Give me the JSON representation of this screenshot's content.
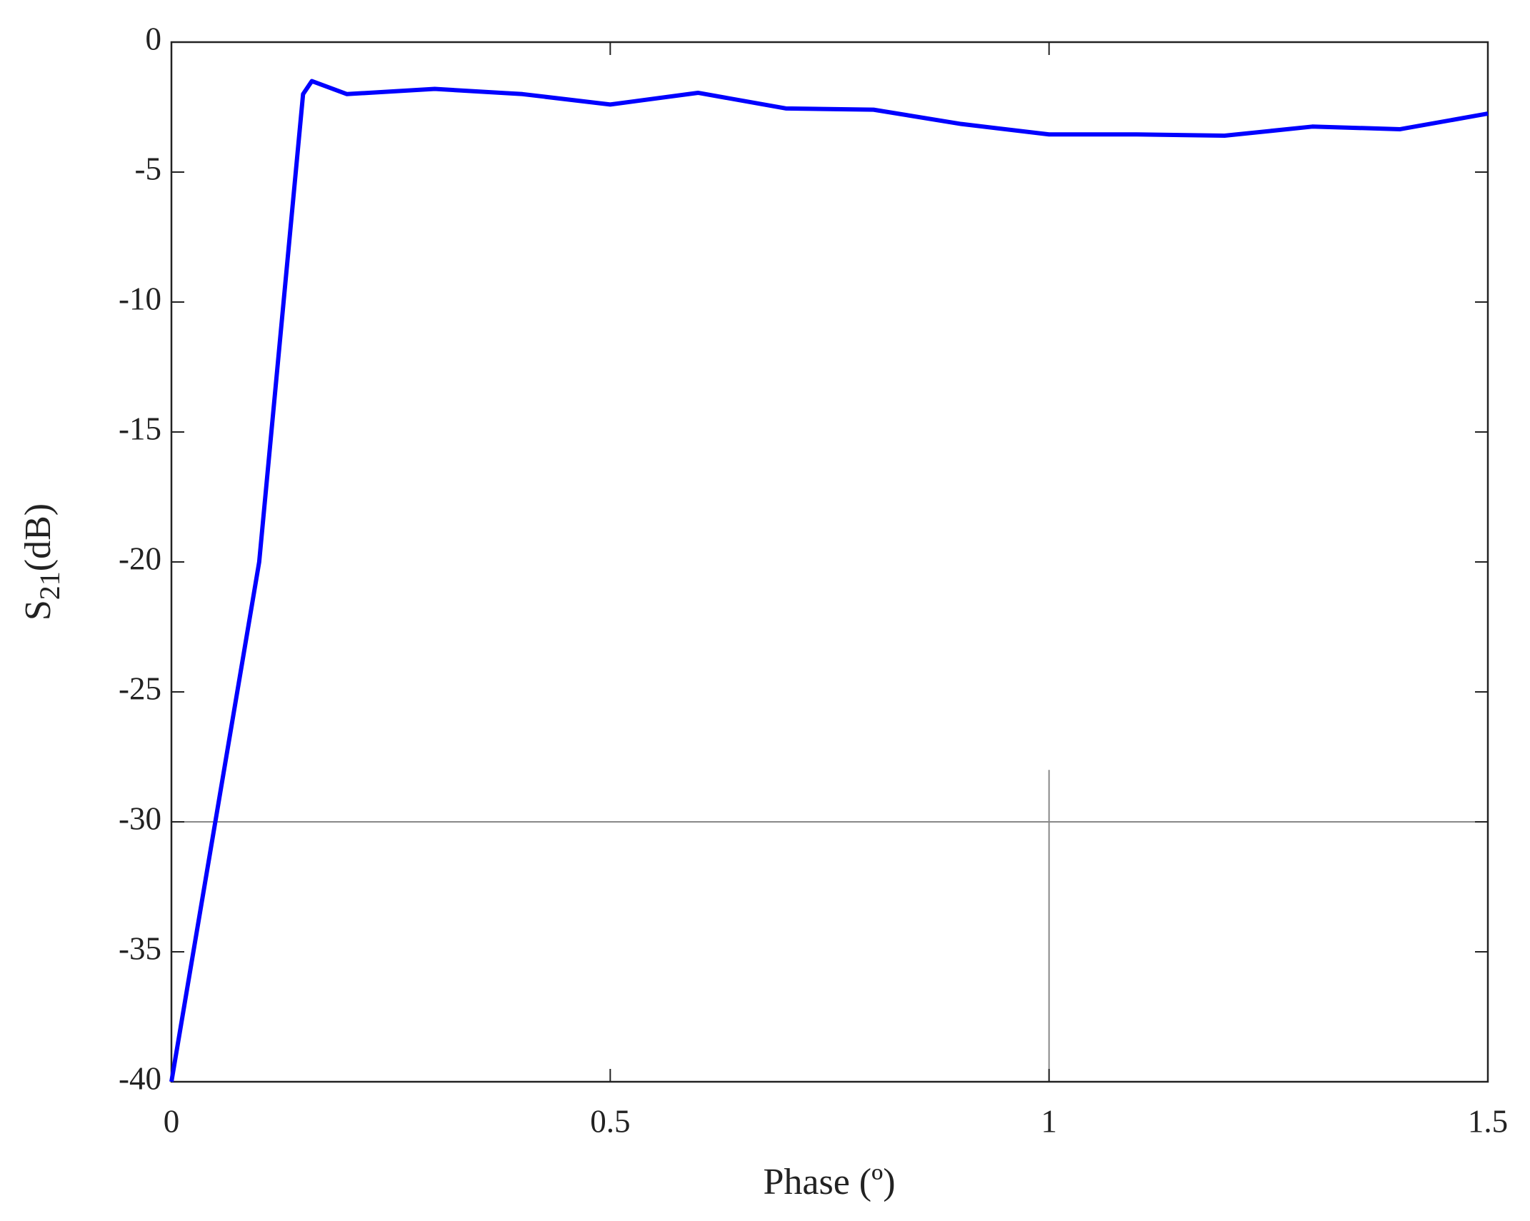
{
  "chart_data": {
    "type": "line",
    "xlabel": "Phase (º)",
    "ylabel": [
      "S",
      "21",
      "(dB)"
    ],
    "x": [
      0,
      0.1,
      0.15,
      0.16,
      0.2,
      0.3,
      0.4,
      0.5,
      0.6,
      0.7,
      0.8,
      0.9,
      1.0,
      1.1,
      1.2,
      1.3,
      1.4,
      1.5
    ],
    "series": [
      {
        "color": "#0000ff",
        "values": [
          -40,
          -20,
          -2,
          -1.5,
          -2,
          -1.8,
          -2,
          -2.4,
          -1.95,
          -2.55,
          -2.6,
          -3.15,
          -3.55,
          -3.55,
          -3.6,
          -3.25,
          -3.35,
          -2.75
        ]
      }
    ],
    "xlim": [
      0,
      1.5
    ],
    "xticks": [
      0,
      0.5,
      1,
      1.5
    ],
    "ylim": [
      -40,
      0
    ],
    "yticks": [
      0,
      -5,
      -10,
      -15,
      -20,
      -25,
      -30,
      -35,
      -40
    ],
    "reference_lines": {
      "y": -30,
      "x": 1,
      "x_top": -28,
      "color": "#888888"
    }
  }
}
